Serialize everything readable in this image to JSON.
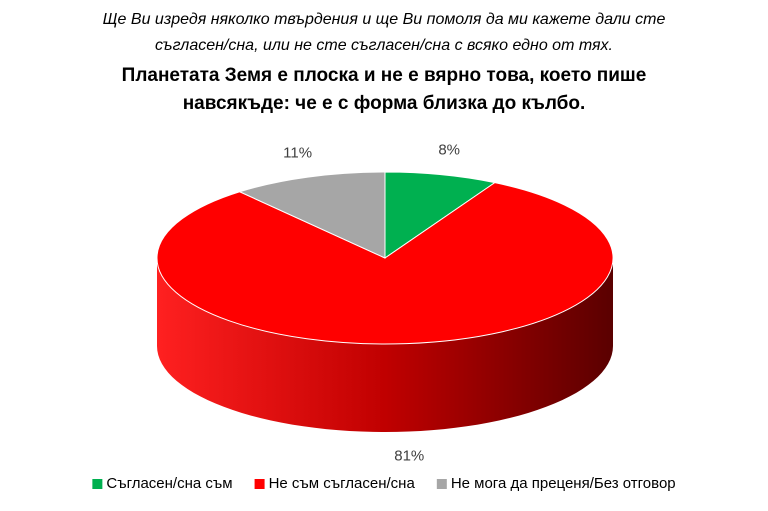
{
  "chart_data": {
    "type": "pie3d",
    "subtitle": [
      "Ще Ви изредя няколко твърдения и ще Ви помоля да ми кажете дали сте",
      "съгласен/сна, или не сте съгласен/сна с всяко едно от тях."
    ],
    "title": [
      "Планетата Земя е плоска и не е вярно това, което пише",
      "навсякъде: че е с форма близка до кълбо."
    ],
    "categories": [
      "Съгласен/сна съм",
      "Не съм съгласен/сна",
      "Не мога да преценя/Без отговор"
    ],
    "values": [
      8,
      81,
      11
    ],
    "value_labels": [
      "8%",
      "81%",
      "11%"
    ],
    "colors": [
      "#00b050",
      "#ff0000",
      "#a6a6a6"
    ],
    "legend": "bottom"
  }
}
